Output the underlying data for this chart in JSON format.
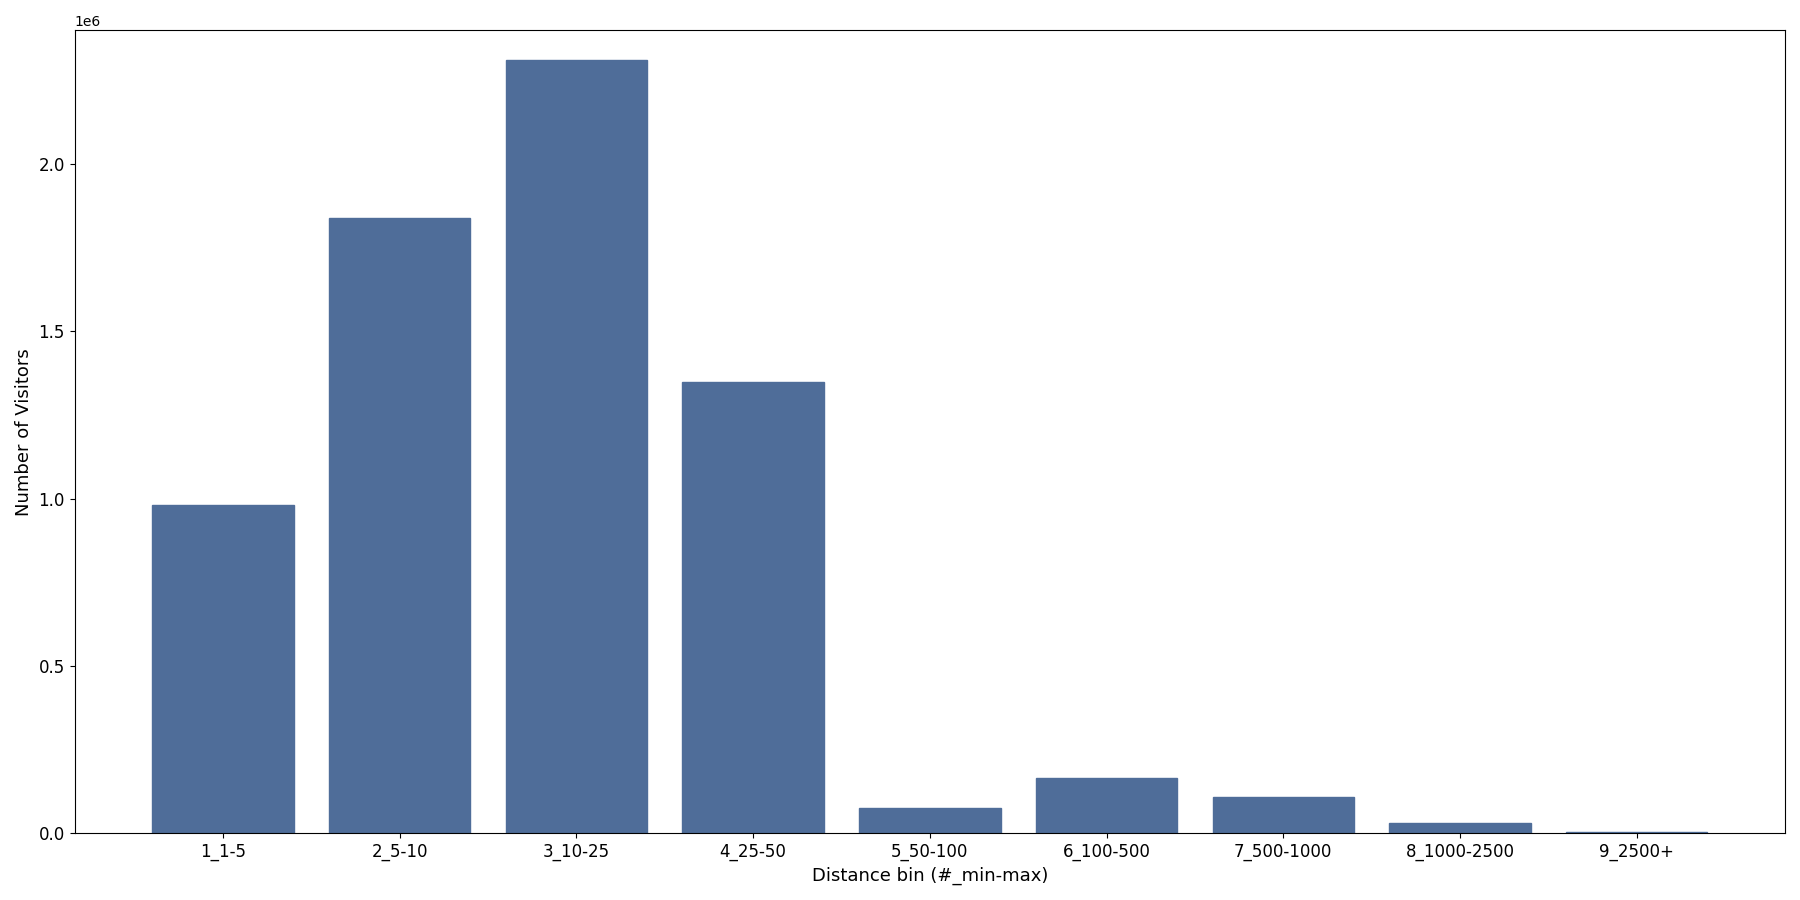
{
  "categories": [
    "1_1-5",
    "2_5-10",
    "3_10-25",
    "4_25-50",
    "5_50-100",
    "6_100-500",
    "7_500-1000",
    "8_1000-2500",
    "9_2500+"
  ],
  "values": [
    980000,
    1840000,
    2310000,
    1350000,
    75000,
    165000,
    110000,
    30000,
    5000
  ],
  "bar_color": "#4f6d99",
  "xlabel": "Distance bin (#_min-max)",
  "ylabel": "Number of Visitors",
  "ylim": [
    0,
    2400000
  ],
  "yticks": [
    0,
    500000,
    1000000,
    1500000,
    2000000
  ],
  "background_color": "#ffffff",
  "tick_fontsize": 12,
  "label_fontsize": 13,
  "figsize": [
    18.0,
    9.0
  ],
  "dpi": 100
}
